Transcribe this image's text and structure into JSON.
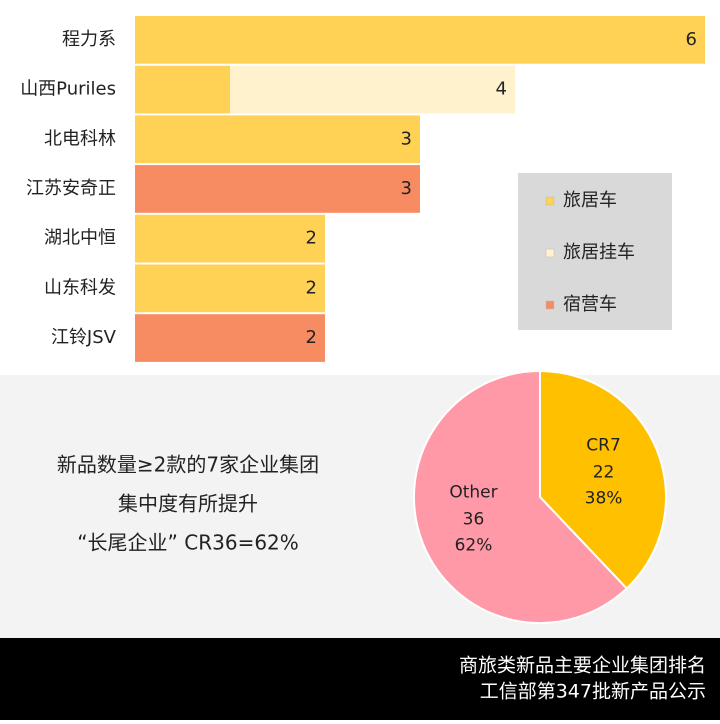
{
  "chart_data": [
    {
      "type": "stacked-barh",
      "categories": [
        "程力系",
        "山西Puriles",
        "北电科林",
        "江苏安奇正",
        "湖北中恒",
        "山东科发",
        "江铃JSV"
      ],
      "series": [
        {
          "name": "旅居车",
          "color": "#FFD154",
          "values": [
            6,
            1,
            3,
            0,
            2,
            2,
            0
          ]
        },
        {
          "name": "旅居挂车",
          "color": "#FFF2CC",
          "values": [
            0,
            3,
            0,
            0,
            0,
            0,
            0
          ]
        },
        {
          "name": "宿营车",
          "color": "#F78B62",
          "values": [
            0,
            0,
            0,
            3,
            0,
            0,
            2
          ]
        }
      ],
      "total_labels": [
        6,
        4,
        3,
        3,
        2,
        2,
        2
      ],
      "legend": "right"
    },
    {
      "type": "pie",
      "categories": [
        "CR7",
        "Other"
      ],
      "values": [
        22,
        36
      ],
      "colors": [
        "#FFC000",
        "#FF99A8"
      ],
      "percents": [
        38,
        62
      ],
      "percent_labels": [
        "38%",
        "62%"
      ],
      "annotations": [
        "新品数量≥2款的7家企业集团",
        "集中度有所提升",
        "“长尾企业” CR36=62%"
      ]
    }
  ],
  "footer": [
    "商旅类新品主要企业集团排名",
    "工信部第347批新产品公示"
  ]
}
